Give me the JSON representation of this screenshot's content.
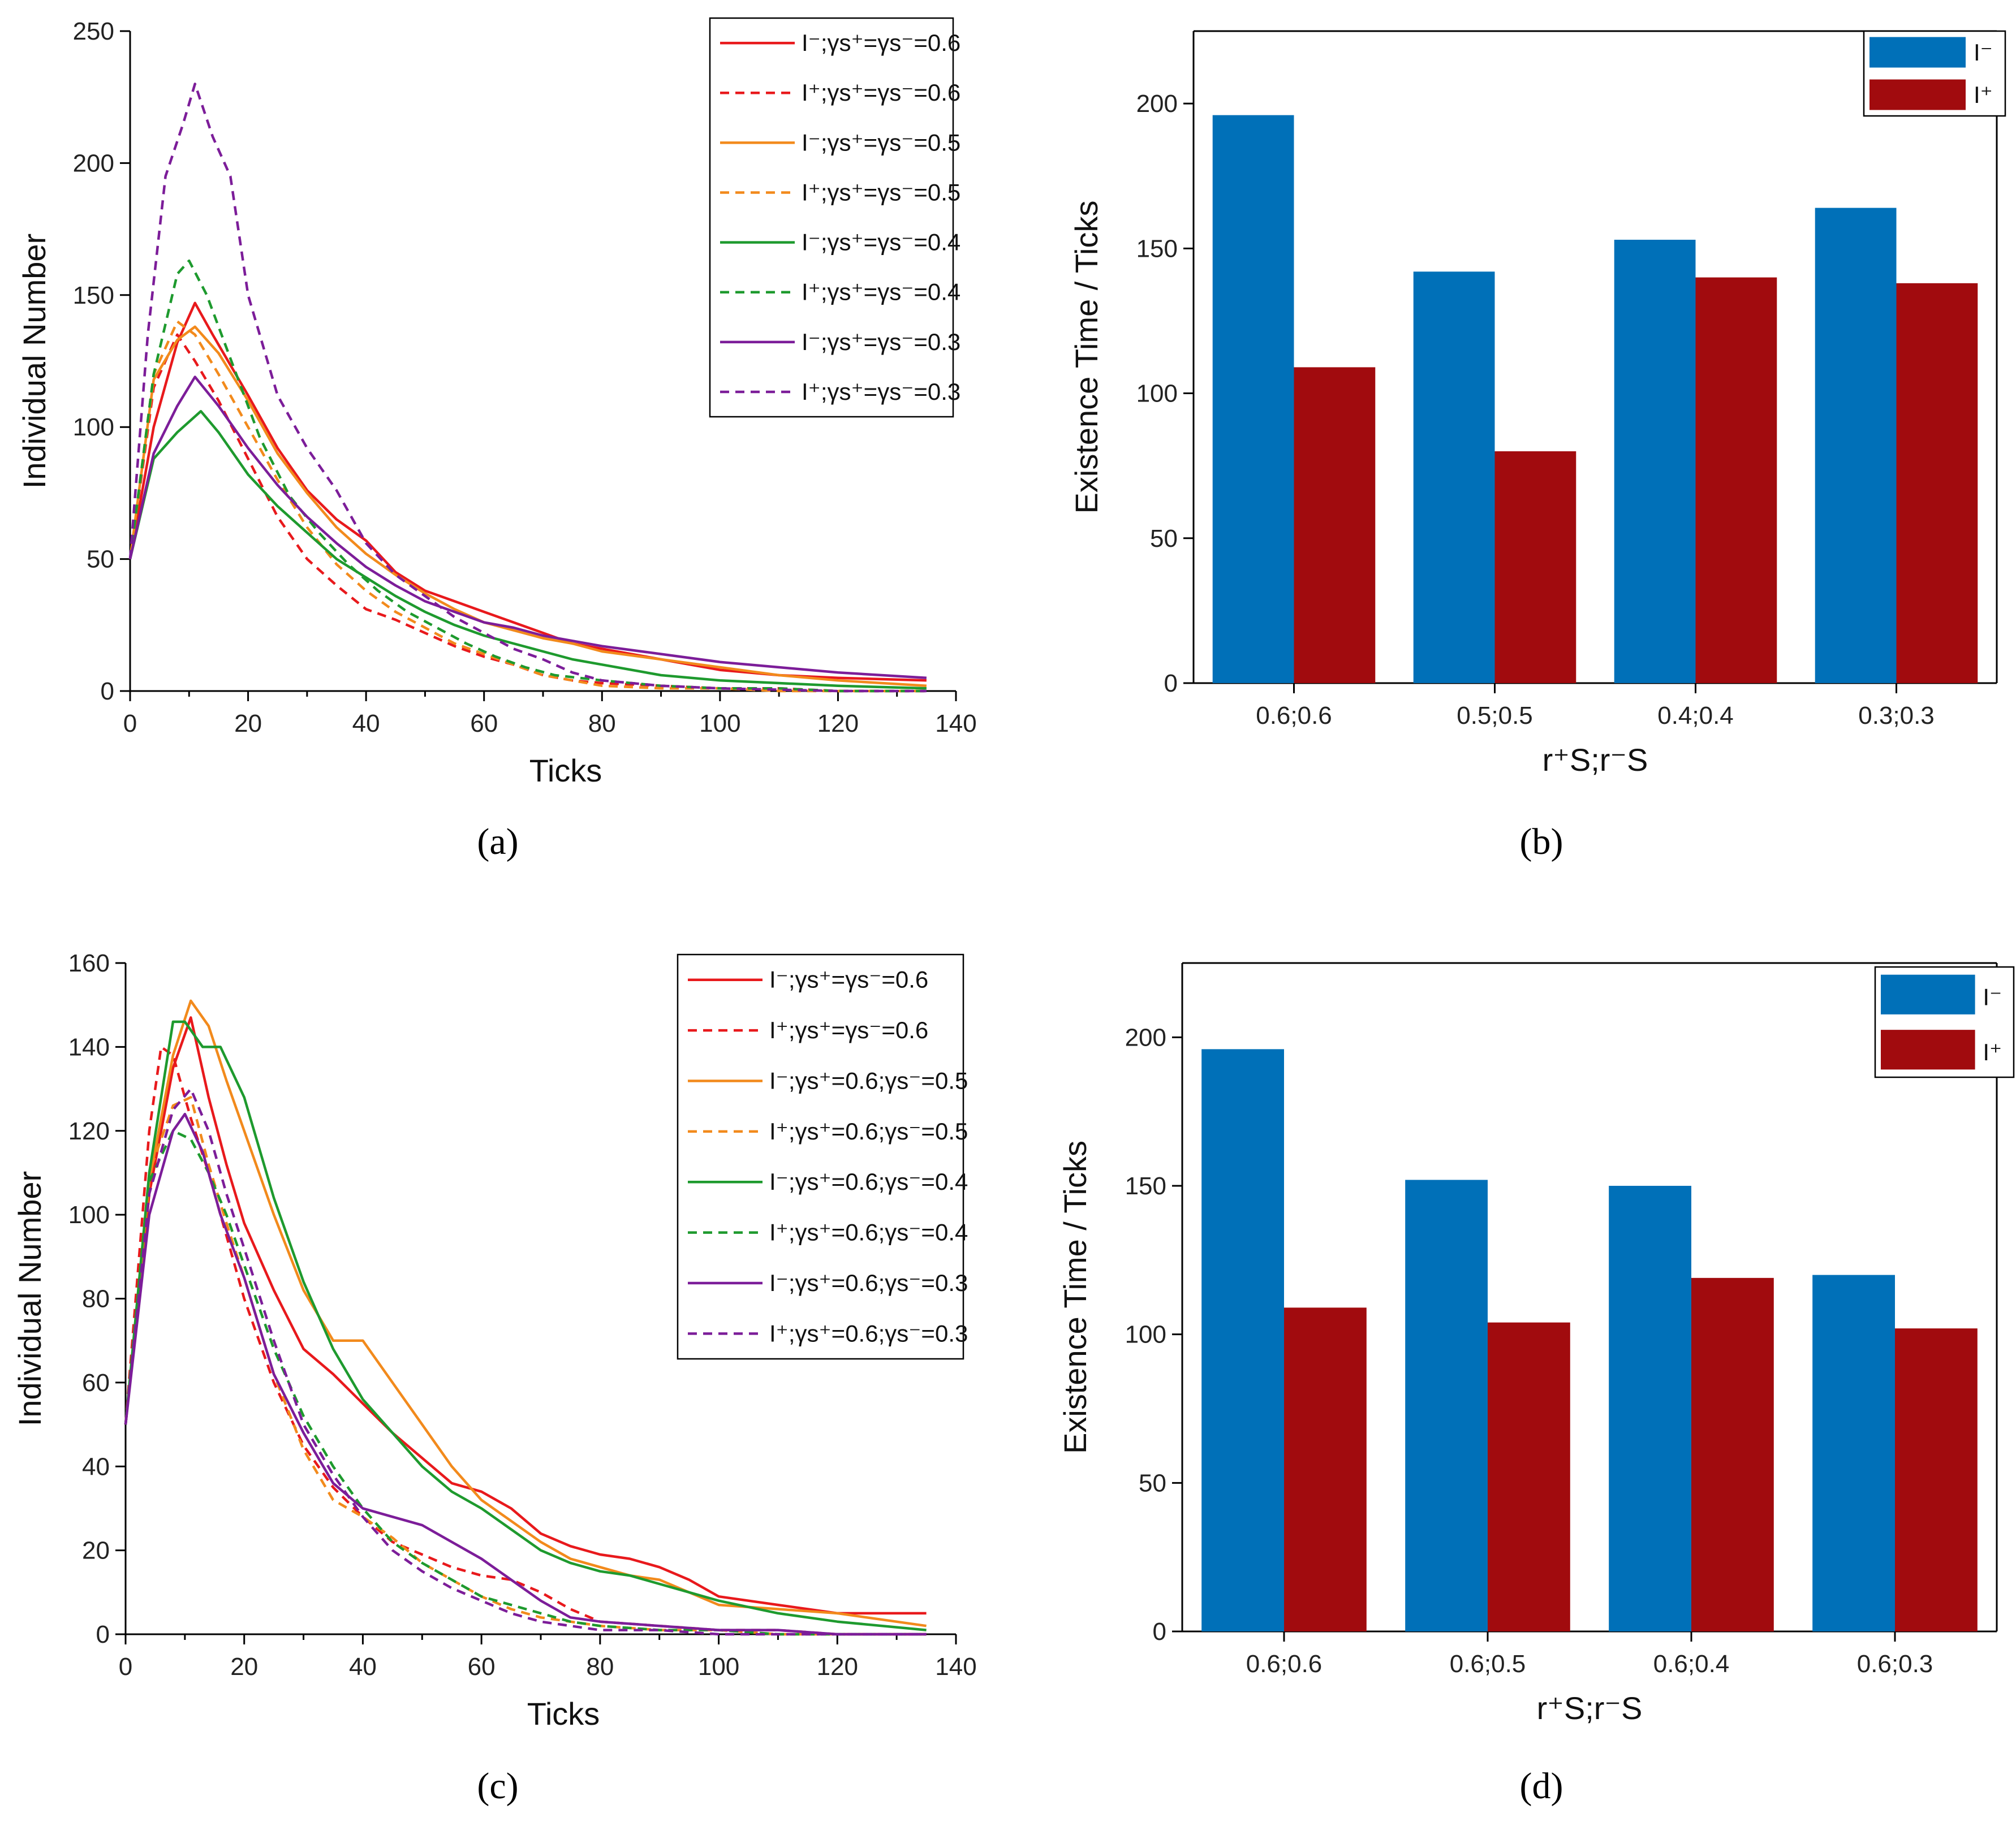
{
  "chart_data": [
    {
      "id": "a",
      "type": "line",
      "panel_label": "(a)",
      "xlabel": "Ticks",
      "ylabel": "Individual Number",
      "xlim": [
        0,
        140
      ],
      "ylim": [
        0,
        250
      ],
      "xticks": [
        0,
        20,
        40,
        60,
        80,
        100,
        120,
        140
      ],
      "yticks": [
        0,
        50,
        100,
        150,
        200,
        250
      ],
      "legend_position": "top-right",
      "series": [
        {
          "name": "I⁻;γs⁺=γs⁻=0.6",
          "color": "#e8191c",
          "dash": false,
          "x": [
            0,
            4,
            8,
            11,
            14,
            20,
            25,
            30,
            35,
            40,
            45,
            50,
            55,
            60,
            65,
            70,
            75,
            80,
            90,
            100,
            110,
            120,
            135
          ],
          "y": [
            50,
            100,
            132,
            147,
            135,
            112,
            92,
            76,
            65,
            57,
            45,
            38,
            34,
            30,
            26,
            22,
            18,
            16,
            12,
            8,
            6,
            5,
            4
          ]
        },
        {
          "name": "I⁺;γs⁺=γs⁻=0.6",
          "color": "#e8191c",
          "dash": true,
          "x": [
            0,
            4,
            8,
            11,
            15,
            20,
            25,
            30,
            35,
            40,
            45,
            50,
            55,
            60,
            65,
            70,
            75,
            80,
            90,
            100,
            110,
            120,
            135
          ],
          "y": [
            50,
            115,
            135,
            125,
            110,
            88,
            66,
            50,
            40,
            31,
            27,
            22,
            17,
            13,
            10,
            6,
            4,
            3,
            2,
            1,
            1,
            0,
            0
          ]
        },
        {
          "name": "I⁻;γs⁺=γs⁻=0.5",
          "color": "#f28a1c",
          "dash": false,
          "x": [
            0,
            4,
            8,
            11,
            15,
            20,
            25,
            30,
            35,
            40,
            45,
            50,
            55,
            60,
            65,
            70,
            75,
            80,
            90,
            100,
            110,
            120,
            135
          ],
          "y": [
            50,
            118,
            133,
            138,
            128,
            110,
            90,
            75,
            62,
            52,
            44,
            37,
            31,
            26,
            23,
            20,
            18,
            15,
            12,
            9,
            6,
            4,
            2
          ]
        },
        {
          "name": "I⁺;γs⁺=γs⁻=0.5",
          "color": "#f28a1c",
          "dash": true,
          "x": [
            0,
            4,
            8,
            11,
            15,
            20,
            25,
            30,
            35,
            40,
            45,
            50,
            55,
            60,
            65,
            70,
            75,
            80,
            90,
            100,
            110,
            120,
            135
          ],
          "y": [
            50,
            120,
            140,
            135,
            120,
            100,
            80,
            62,
            48,
            38,
            30,
            24,
            18,
            14,
            10,
            6,
            4,
            2,
            1,
            1,
            0,
            0,
            0
          ]
        },
        {
          "name": "I⁻;γs⁺=γs⁻=0.4",
          "color": "#1e9a2e",
          "dash": false,
          "x": [
            0,
            4,
            8,
            12,
            15,
            20,
            25,
            30,
            35,
            40,
            45,
            50,
            55,
            60,
            65,
            70,
            75,
            80,
            90,
            100,
            110,
            120,
            135
          ],
          "y": [
            50,
            88,
            98,
            106,
            98,
            82,
            70,
            60,
            50,
            43,
            36,
            30,
            25,
            21,
            18,
            15,
            12,
            10,
            6,
            4,
            3,
            2,
            1
          ]
        },
        {
          "name": "I⁺;γs⁺=γs⁻=0.4",
          "color": "#1e9a2e",
          "dash": true,
          "x": [
            0,
            4,
            8,
            10,
            13,
            18,
            22,
            27,
            32,
            37,
            42,
            47,
            52,
            57,
            62,
            67,
            72,
            80,
            90,
            100,
            110,
            120,
            135
          ],
          "y": [
            50,
            120,
            158,
            163,
            150,
            120,
            96,
            74,
            60,
            48,
            38,
            30,
            24,
            18,
            13,
            9,
            6,
            4,
            2,
            1,
            1,
            0,
            0
          ]
        },
        {
          "name": "I⁻;γs⁺=γs⁻=0.3",
          "color": "#7c1d99",
          "dash": false,
          "x": [
            0,
            4,
            8,
            11,
            15,
            20,
            25,
            30,
            35,
            40,
            45,
            50,
            55,
            60,
            65,
            70,
            75,
            80,
            90,
            100,
            110,
            120,
            135
          ],
          "y": [
            50,
            90,
            108,
            119,
            108,
            92,
            78,
            66,
            56,
            47,
            40,
            34,
            30,
            26,
            24,
            21,
            19,
            17,
            14,
            11,
            9,
            7,
            5
          ]
        },
        {
          "name": "I⁺;γs⁺=γs⁻=0.3",
          "color": "#7c1d99",
          "dash": true,
          "x": [
            0,
            3,
            6,
            9,
            11,
            14,
            17,
            20,
            25,
            30,
            35,
            40,
            45,
            50,
            55,
            60,
            65,
            70,
            75,
            80,
            90,
            100,
            120,
            135
          ],
          "y": [
            50,
            135,
            195,
            215,
            230,
            210,
            195,
            150,
            112,
            92,
            76,
            56,
            44,
            36,
            28,
            22,
            16,
            12,
            7,
            4,
            2,
            1,
            0,
            0
          ]
        }
      ]
    },
    {
      "id": "b",
      "type": "bar",
      "panel_label": "(b)",
      "xlabel": "r⁺S;r⁻S",
      "ylabel": "Existence Time / Ticks",
      "ylim": [
        0,
        225
      ],
      "yticks": [
        0,
        50,
        100,
        150,
        200
      ],
      "legend_position": "top-right",
      "categories": [
        "0.6;0.6",
        "0.5;0.5",
        "0.4;0.4",
        "0.3;0.3"
      ],
      "series": [
        {
          "name": "I⁻",
          "color": "#0070b8",
          "values": [
            196,
            142,
            153,
            164
          ]
        },
        {
          "name": "I⁺",
          "color": "#a10b0e",
          "values": [
            109,
            80,
            140,
            138
          ]
        }
      ]
    },
    {
      "id": "c",
      "type": "line",
      "panel_label": "(c)",
      "xlabel": "Ticks",
      "ylabel": "Individual Number",
      "xlim": [
        0,
        140
      ],
      "ylim": [
        0,
        160
      ],
      "xticks": [
        0,
        20,
        40,
        60,
        80,
        100,
        120,
        140
      ],
      "yticks": [
        0,
        20,
        40,
        60,
        80,
        100,
        120,
        140,
        160
      ],
      "legend_position": "top-right",
      "series": [
        {
          "name": "I⁻;γs⁺=γs⁻=0.6",
          "color": "#e8191c",
          "dash": false,
          "x": [
            0,
            4,
            8,
            11,
            14,
            17,
            20,
            25,
            30,
            35,
            40,
            45,
            50,
            55,
            60,
            65,
            70,
            75,
            80,
            85,
            90,
            95,
            100,
            110,
            120,
            135
          ],
          "y": [
            50,
            105,
            135,
            147,
            128,
            112,
            98,
            82,
            68,
            62,
            55,
            48,
            42,
            36,
            34,
            30,
            24,
            21,
            19,
            18,
            16,
            13,
            9,
            7,
            5,
            5
          ]
        },
        {
          "name": "I⁺;γs⁺=γs⁻=0.6",
          "color": "#e8191c",
          "dash": true,
          "x": [
            0,
            4,
            6,
            8,
            11,
            14,
            17,
            20,
            25,
            30,
            35,
            40,
            45,
            50,
            55,
            60,
            65,
            70,
            75,
            80,
            90,
            100,
            110,
            120,
            135
          ],
          "y": [
            50,
            120,
            140,
            138,
            123,
            110,
            95,
            80,
            60,
            45,
            35,
            28,
            22,
            19,
            16,
            14,
            13,
            10,
            6,
            3,
            2,
            1,
            1,
            0,
            0
          ]
        },
        {
          "name": "I⁻;γs⁺=0.6;γs⁻=0.5",
          "color": "#f28a1c",
          "dash": false,
          "x": [
            0,
            4,
            8,
            11,
            14,
            17,
            20,
            25,
            30,
            35,
            40,
            45,
            50,
            55,
            60,
            65,
            70,
            75,
            80,
            85,
            90,
            95,
            100,
            110,
            120,
            135
          ],
          "y": [
            50,
            108,
            138,
            151,
            145,
            132,
            120,
            100,
            82,
            70,
            70,
            60,
            50,
            40,
            32,
            27,
            22,
            18,
            16,
            14,
            13,
            10,
            7,
            6,
            5,
            2
          ]
        },
        {
          "name": "I⁺;γs⁺=0.6;γs⁻=0.5",
          "color": "#f28a1c",
          "dash": true,
          "x": [
            0,
            4,
            8,
            11,
            14,
            17,
            20,
            25,
            30,
            35,
            40,
            45,
            50,
            55,
            60,
            65,
            70,
            75,
            80,
            90,
            100,
            110,
            120,
            135
          ],
          "y": [
            50,
            110,
            126,
            128,
            112,
            98,
            85,
            62,
            44,
            32,
            28,
            23,
            17,
            13,
            9,
            6,
            4,
            3,
            2,
            1,
            1,
            0,
            0,
            0
          ]
        },
        {
          "name": "I⁻;γs⁺=0.6;γs⁻=0.4",
          "color": "#1e9a2e",
          "dash": false,
          "x": [
            0,
            4,
            8,
            10,
            13,
            16,
            20,
            25,
            30,
            35,
            40,
            45,
            50,
            55,
            60,
            65,
            70,
            75,
            80,
            85,
            90,
            95,
            100,
            110,
            120,
            135
          ],
          "y": [
            50,
            110,
            146,
            146,
            140,
            140,
            128,
            104,
            84,
            68,
            56,
            48,
            40,
            34,
            30,
            25,
            20,
            17,
            15,
            14,
            12,
            10,
            8,
            5,
            3,
            1
          ]
        },
        {
          "name": "I⁺;γs⁺=0.6;γs⁻=0.4",
          "color": "#1e9a2e",
          "dash": true,
          "x": [
            0,
            4,
            8,
            11,
            14,
            17,
            20,
            25,
            30,
            35,
            40,
            45,
            50,
            55,
            60,
            65,
            70,
            75,
            80,
            90,
            100,
            110,
            120,
            135
          ],
          "y": [
            50,
            108,
            120,
            118,
            110,
            100,
            88,
            68,
            52,
            40,
            30,
            22,
            17,
            13,
            9,
            7,
            5,
            3,
            2,
            1,
            1,
            0,
            0,
            0
          ]
        },
        {
          "name": "I⁻;γs⁺=0.6;γs⁻=0.3",
          "color": "#7c1d99",
          "dash": false,
          "x": [
            0,
            4,
            8,
            10,
            13,
            16,
            20,
            25,
            30,
            35,
            40,
            45,
            50,
            55,
            60,
            65,
            70,
            75,
            80,
            90,
            100,
            110,
            120,
            135
          ],
          "y": [
            50,
            100,
            120,
            124,
            115,
            100,
            85,
            62,
            48,
            36,
            30,
            28,
            26,
            22,
            18,
            13,
            8,
            4,
            3,
            2,
            1,
            1,
            0,
            0
          ]
        },
        {
          "name": "I⁺;γs⁺=0.6;γs⁻=0.3",
          "color": "#7c1d99",
          "dash": true,
          "x": [
            0,
            4,
            8,
            11,
            14,
            17,
            20,
            25,
            30,
            35,
            40,
            45,
            50,
            55,
            60,
            65,
            70,
            75,
            80,
            90,
            100,
            110,
            120,
            135
          ],
          "y": [
            50,
            105,
            125,
            130,
            120,
            105,
            92,
            70,
            50,
            38,
            28,
            20,
            15,
            11,
            8,
            5,
            3,
            2,
            1,
            1,
            0,
            0,
            0,
            0
          ]
        }
      ]
    },
    {
      "id": "d",
      "type": "bar",
      "panel_label": "(d)",
      "xlabel": "r⁺S;r⁻S",
      "ylabel": "Existence Time / Ticks",
      "ylim": [
        0,
        225
      ],
      "yticks": [
        0,
        50,
        100,
        150,
        200
      ],
      "legend_position": "top-right",
      "categories": [
        "0.6;0.6",
        "0.6;0.5",
        "0.6;0.4",
        "0.6;0.3"
      ],
      "series": [
        {
          "name": "I⁻",
          "color": "#0070b8",
          "values": [
            196,
            152,
            150,
            120
          ]
        },
        {
          "name": "I⁺",
          "color": "#a10b0e",
          "values": [
            109,
            104,
            119,
            102
          ]
        }
      ]
    }
  ]
}
